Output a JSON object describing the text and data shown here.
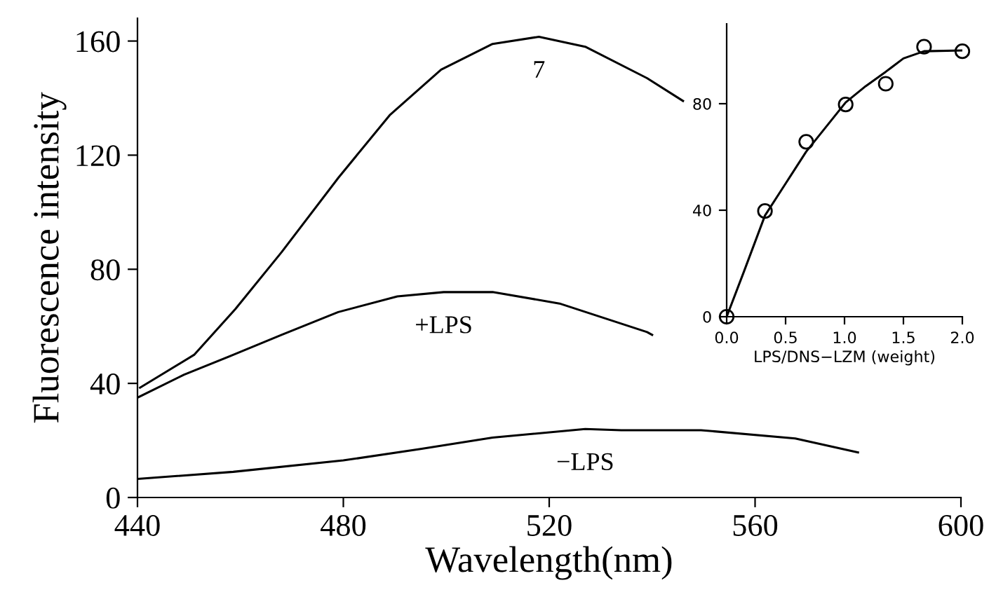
{
  "chart_data": [
    {
      "type": "line",
      "xlabel": "Wavelength(nm)",
      "ylabel": "Fluorescence intensity",
      "xlim": [
        440,
        600
      ],
      "ylim": [
        0,
        168
      ],
      "xticks": [
        440,
        480,
        520,
        560,
        600
      ],
      "yticks": [
        0,
        40,
        80,
        120,
        160
      ],
      "grid": false,
      "legend": false,
      "marker": "none",
      "line_style": "solid",
      "series": [
        {
          "color": "#000000",
          "x": [
            440.5,
            451,
            459,
            468,
            479,
            489,
            499,
            509,
            518,
            527,
            539,
            546
          ],
          "values": [
            38.5,
            50,
            66,
            86,
            112,
            134,
            150,
            159,
            161.5,
            158,
            147,
            139
          ]
        },
        {
          "color": "#000000",
          "x": [
            440,
            449,
            458.6,
            468,
            479,
            490.5,
            499.5,
            509,
            522,
            539,
            540
          ],
          "values": [
            35,
            43,
            50,
            57,
            65,
            70.5,
            72,
            72,
            68,
            58,
            57
          ]
        },
        {
          "color": "#000000",
          "x": [
            440,
            458.6,
            480,
            495,
            509,
            527,
            534,
            549.5,
            567.8,
            580
          ],
          "values": [
            6.5,
            9,
            13,
            17,
            21,
            24,
            23.6,
            23.6,
            20.7,
            15.8
          ]
        }
      ],
      "annotations": [
        "7",
        "+LPS",
        "−LPS"
      ]
    },
    {
      "type": "scatter",
      "xlabel": "LPS/DNS−LZM (weight)",
      "xlim": [
        0,
        2.0
      ],
      "ylim": [
        0,
        110
      ],
      "xticks": [
        {
          "value": 0,
          "label": "0.0"
        },
        {
          "value": 0.5,
          "label": "0.5"
        },
        {
          "value": 1.0,
          "label": "1.0"
        },
        {
          "value": 1.5,
          "label": "1.5"
        },
        {
          "value": 2.0,
          "label": "2.0"
        }
      ],
      "yticks": [
        0,
        40,
        80
      ],
      "grid": false,
      "legend": false,
      "series": [
        {
          "color": "#000000",
          "marker": "circle",
          "x": [
            0,
            0.325,
            0.675,
            1.01,
            1.35,
            1.675,
            2.0
          ],
          "values": [
            0,
            39.7,
            65.7,
            79.7,
            87.5,
            101.4,
            99.7
          ]
        },
        {
          "type": "line",
          "marker": "none",
          "color": "#000000",
          "x": [
            0,
            0.147,
            0.325,
            0.5,
            0.675,
            1.01,
            1.18,
            1.35,
            1.5,
            1.675,
            2.0
          ],
          "values": [
            0,
            17,
            38,
            50,
            62,
            80.5,
            86.6,
            92,
            97,
            99.7,
            100
          ]
        }
      ]
    }
  ]
}
